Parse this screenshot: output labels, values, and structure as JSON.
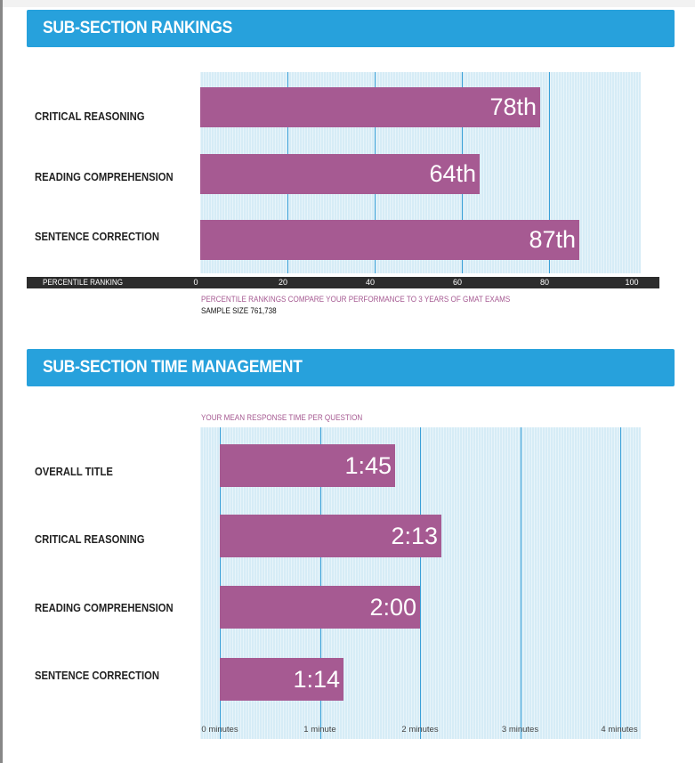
{
  "chart_data": [
    {
      "type": "bar",
      "orientation": "horizontal",
      "title": "SUB-SECTION RANKINGS",
      "categories": [
        "CRITICAL REASONING",
        "READING COMPREHENSION",
        "SENTENCE CORRECTION"
      ],
      "values": [
        78,
        64,
        87
      ],
      "value_labels": [
        "78th",
        "64th",
        "87th"
      ],
      "xlabel": "PERCENTILE RANKING",
      "xlim": [
        0,
        100
      ],
      "ticks": [
        0,
        20,
        40,
        60,
        80,
        100
      ],
      "tick_labels": [
        "0",
        "20",
        "40",
        "60",
        "80",
        "100"
      ],
      "note": "PERCENTILE RANKINGS COMPARE YOUR PERFORMANCE TO 3 YEARS OF GMAT EXAMS",
      "sample_size": "SAMPLE SIZE 761,738",
      "grid": true,
      "colors": {
        "bar": "#a65a92",
        "plot_bg": "#d6ecf6",
        "grid": "#3aa0d8"
      }
    },
    {
      "type": "bar",
      "orientation": "horizontal",
      "title": "SUB-SECTION TIME MANAGEMENT",
      "subtitle": "YOUR MEAN RESPONSE TIME PER QUESTION",
      "categories": [
        "OVERALL TITLE",
        "CRITICAL REASONING",
        "READING COMPREHENSION",
        "SENTENCE CORRECTION"
      ],
      "values": [
        1.75,
        2.2167,
        2.0,
        1.2333
      ],
      "value_labels": [
        "1:45",
        "2:13",
        "2:00",
        "1:14"
      ],
      "xlim": [
        0,
        4
      ],
      "ticks": [
        0,
        1,
        2,
        3,
        4
      ],
      "tick_labels": [
        "0 minutes",
        "1 minute",
        "2 minutes",
        "3 minutes",
        "4 minutes"
      ],
      "grid": true,
      "colors": {
        "bar": "#a65a92",
        "plot_bg": "#d6ecf6",
        "grid": "#3aa0d8"
      }
    }
  ]
}
